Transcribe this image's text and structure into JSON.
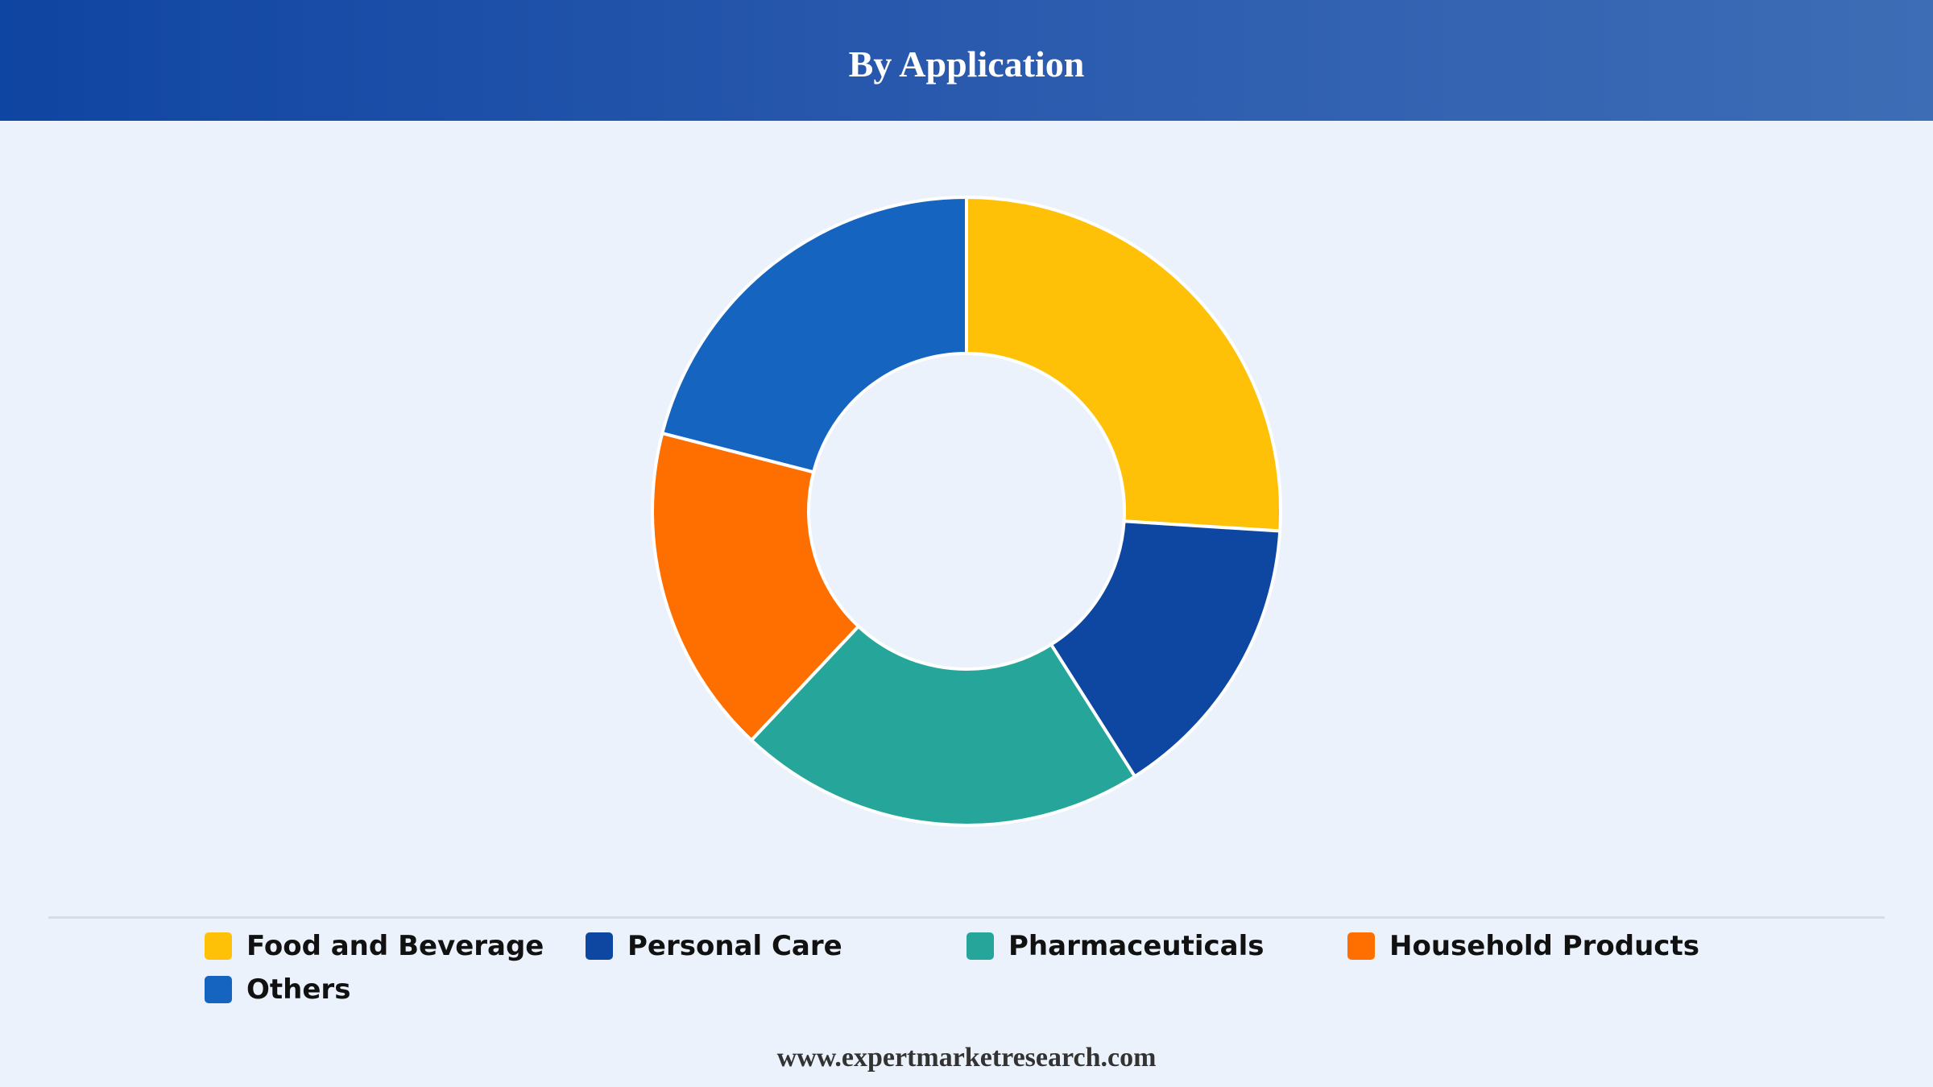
{
  "header": {
    "title": "By Application"
  },
  "footer": {
    "url": "www.expertmarketresearch.com"
  },
  "colors": {
    "header_gradient_start": "#0f45a2",
    "header_gradient_end": "#3d6db5",
    "background": "#ebf2fb",
    "slice_stroke": "#ffffff"
  },
  "chart_data": {
    "type": "pie",
    "variant": "donut",
    "title": "By Application",
    "legend_position": "bottom",
    "categories": [
      "Food and Beverage",
      "Personal Care",
      "Pharmaceuticals",
      "Household Products",
      "Others"
    ],
    "values": [
      26,
      15,
      21,
      17,
      21
    ],
    "colors": [
      "#ffc107",
      "#0d47a1",
      "#26a69a",
      "#ff6f00",
      "#1565c0"
    ]
  }
}
